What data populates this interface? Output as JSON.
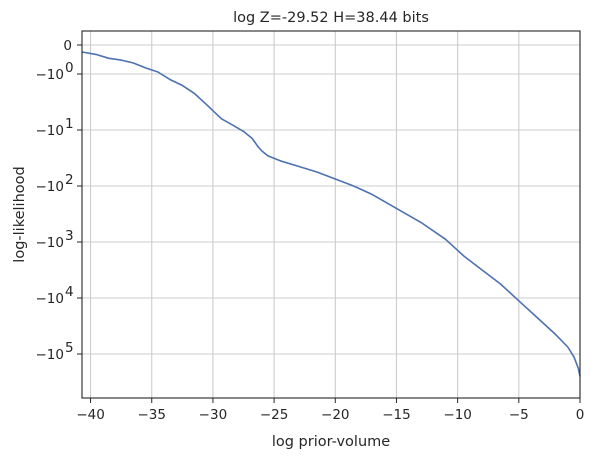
{
  "chart_data": {
    "type": "line",
    "title": "log Z=-29.52 H=38.44 bits",
    "xlabel": "log prior-volume",
    "ylabel": "log-likelihood",
    "xlim": [
      -40.7,
      0
    ],
    "x_ticks": [
      {
        "value": -40,
        "label": "−40"
      },
      {
        "value": -35,
        "label": "−35"
      },
      {
        "value": -30,
        "label": "−30"
      },
      {
        "value": -25,
        "label": "−25"
      },
      {
        "value": -20,
        "label": "−20"
      },
      {
        "value": -15,
        "label": "−15"
      },
      {
        "value": -10,
        "label": "−10"
      },
      {
        "value": -5,
        "label": "−5"
      },
      {
        "value": 0,
        "label": "0"
      }
    ],
    "y_scale": "symlog",
    "y_ticks": [
      {
        "value": 0,
        "label": "0",
        "exp": ""
      },
      {
        "value": -1,
        "label": "−10",
        "exp": "0"
      },
      {
        "value": -10,
        "label": "−10",
        "exp": "1"
      },
      {
        "value": -100,
        "label": "−10",
        "exp": "2"
      },
      {
        "value": -1000,
        "label": "−10",
        "exp": "3"
      },
      {
        "value": -10000,
        "label": "−10",
        "exp": "4"
      },
      {
        "value": -100000,
        "label": "−10",
        "exp": "5"
      }
    ],
    "grid": true,
    "series": [
      {
        "color": "#4c72b0",
        "x": [
          -40.7,
          -39.5,
          -38.5,
          -37.5,
          -36.5,
          -35.5,
          -34.5,
          -33.5,
          -32.5,
          -31.5,
          -30.5,
          -29.8,
          -29.3,
          -28.5,
          -27.5,
          -26.8,
          -26.3,
          -26.0,
          -25.5,
          -24.5,
          -23.0,
          -21.5,
          -20.0,
          -18.5,
          -17.0,
          -15.0,
          -13.0,
          -11.0,
          -9.5,
          -8.0,
          -6.5,
          -5.0,
          -3.5,
          -2.0,
          -1.0,
          -0.5,
          -0.15,
          0.0
        ],
        "y": [
          -0.24,
          -0.33,
          -0.46,
          -0.52,
          -0.62,
          -0.79,
          -0.93,
          -1.26,
          -1.6,
          -2.24,
          -3.55,
          -5.0,
          -6.3,
          -7.9,
          -10.6,
          -14.1,
          -20.0,
          -23.7,
          -29.0,
          -35.5,
          -44.7,
          -56.2,
          -75.0,
          -100.0,
          -141.0,
          -251.0,
          -447.0,
          -891.0,
          -1780.0,
          -3160.0,
          -5620.0,
          -11200.0,
          -22400.0,
          -44700.0,
          -75000.0,
          -112000.0,
          -178000.0,
          -250000.0
        ]
      }
    ]
  }
}
